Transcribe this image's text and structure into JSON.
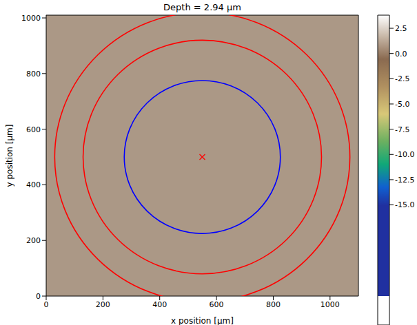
{
  "chart_data": {
    "type": "image",
    "title": "Depth = 2.94 µm",
    "x_label": "x position [µm]",
    "y_label": "y position [µm]",
    "xlim": [
      0,
      1100
    ],
    "ylim": [
      0,
      1010
    ],
    "xticks": [
      0,
      200,
      400,
      600,
      800,
      1000
    ],
    "yticks": [
      0,
      200,
      400,
      600,
      800,
      1000
    ],
    "circles": [
      {
        "center": [
          550,
          500
        ],
        "radius": 275,
        "color": "#0000ff"
      },
      {
        "center": [
          550,
          500
        ],
        "radius": 420,
        "color": "#ff0000"
      },
      {
        "center": [
          550,
          500
        ],
        "radius": 520,
        "color": "#ff0000"
      }
    ],
    "points": [
      {
        "x": 550,
        "y": 500,
        "marker": "x",
        "color": "#ff0000"
      }
    ],
    "colorbar": {
      "range": [
        -26.9,
        3.8
      ],
      "ticks": [
        2.5,
        {
          "value": 0,
          "label": "0.0"
        },
        -2.5,
        {
          "value": -5,
          "label": "-5.0"
        },
        -7.5,
        {
          "value": -10,
          "label": "-10.0"
        },
        -12.5,
        {
          "value": -15,
          "label": "-15.0"
        }
      ],
      "stops": [
        {
          "value": 3.8,
          "color": "#ffffff"
        },
        {
          "value": 1.5,
          "color": "#c8b8a8"
        },
        {
          "value": -1,
          "color": "#8a6a50"
        },
        {
          "value": -4,
          "color": "#b09060"
        },
        {
          "value": -7,
          "color": "#d8c878"
        },
        {
          "value": -10,
          "color": "#6cb060"
        },
        {
          "value": -12.5,
          "color": "#10a878"
        },
        {
          "value": -15,
          "color": "#1060d0"
        },
        {
          "value": -17,
          "color": "#2030a0"
        },
        {
          "value": -26.9,
          "color": "#2030a0"
        }
      ]
    }
  }
}
